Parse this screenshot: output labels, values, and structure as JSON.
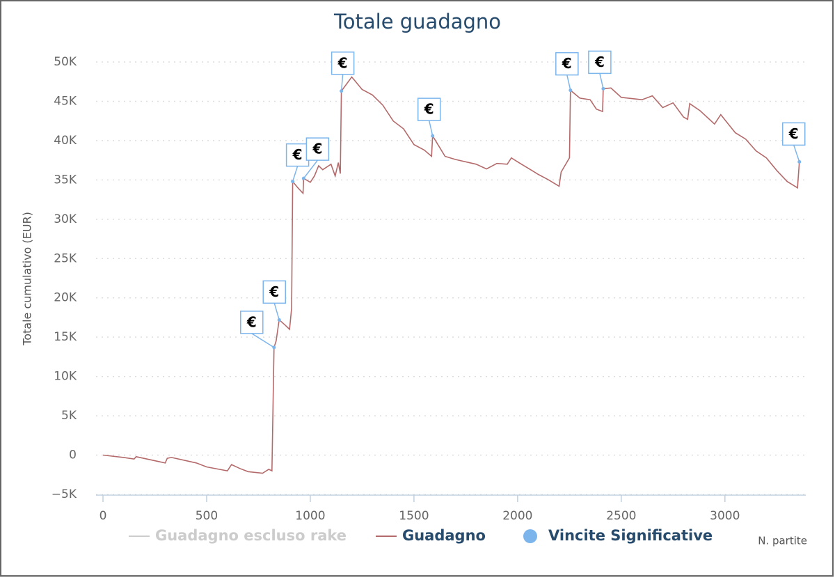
{
  "chart_data": {
    "type": "line",
    "title": "Totale guadagno",
    "x_label": "N. partite",
    "y_label": "Totale cumulativo (EUR)",
    "xlim": [
      0,
      3390
    ],
    "xticks": [
      0,
      500,
      1000,
      1500,
      2000,
      2500,
      3000
    ],
    "ylim": [
      -5000,
      50000
    ],
    "yticks": [
      {
        "value": -5000,
        "label": "−5K"
      },
      0,
      {
        "value": 5000,
        "label": "5K"
      },
      {
        "value": 10000,
        "label": "10K"
      },
      {
        "value": 15000,
        "label": "15K"
      },
      {
        "value": 20000,
        "label": "20K"
      },
      {
        "value": 25000,
        "label": "25K"
      },
      {
        "value": 30000,
        "label": "30K"
      },
      {
        "value": 35000,
        "label": "35K"
      },
      {
        "value": 40000,
        "label": "40K"
      },
      {
        "value": 45000,
        "label": "45K"
      },
      {
        "value": 50000,
        "label": "50K"
      }
    ],
    "grid": true,
    "series": [
      {
        "name": "Guadagno escluso rake",
        "color": "#cccccc",
        "hidden": true,
        "x": [],
        "values": []
      },
      {
        "name": "Guadagno",
        "color": "#b46a6a",
        "x": [
          0,
          100,
          150,
          160,
          300,
          310,
          330,
          450,
          500,
          600,
          620,
          660,
          700,
          770,
          800,
          815,
          825,
          835,
          850,
          880,
          900,
          910,
          915,
          940,
          965,
          968,
          1000,
          1020,
          1040,
          1060,
          1100,
          1120,
          1135,
          1145,
          1150,
          1200,
          1250,
          1300,
          1350,
          1400,
          1450,
          1500,
          1550,
          1585,
          1590,
          1650,
          1700,
          1800,
          1850,
          1900,
          1950,
          1970,
          2000,
          2050,
          2100,
          2150,
          2200,
          2210,
          2250,
          2255,
          2300,
          2350,
          2380,
          2410,
          2413,
          2450,
          2500,
          2600,
          2650,
          2700,
          2750,
          2800,
          2820,
          2830,
          2880,
          2950,
          2980,
          3050,
          3100,
          3150,
          3200,
          3250,
          3300,
          3350,
          3359
        ],
        "values": [
          0,
          -300,
          -500,
          -200,
          -1000,
          -400,
          -300,
          -1000,
          -1500,
          -2000,
          -1200,
          -1700,
          -2100,
          -2300,
          -1800,
          -2000,
          13700,
          14500,
          17200,
          16500,
          16000,
          18700,
          34800,
          34000,
          33300,
          35200,
          34700,
          35500,
          36800,
          36300,
          37000,
          35500,
          37200,
          35800,
          46300,
          48100,
          46500,
          45800,
          44500,
          42500,
          41500,
          39500,
          38800,
          38000,
          40600,
          38000,
          37600,
          37000,
          36400,
          37100,
          37000,
          37800,
          37300,
          36500,
          35700,
          35000,
          34200,
          36000,
          37800,
          46400,
          45400,
          45200,
          44000,
          43700,
          46600,
          46700,
          45500,
          45200,
          45700,
          44200,
          44800,
          43000,
          42700,
          44700,
          43800,
          42100,
          43300,
          41000,
          40200,
          38700,
          37800,
          36200,
          34800,
          34000,
          37300
        ]
      },
      {
        "name": "Vincite Significative",
        "type": "scatter",
        "color": "#7cb5ec",
        "flag_label": "€",
        "x": [
          825,
          850,
          915,
          968,
          1150,
          1590,
          2255,
          2413,
          3359
        ],
        "values": [
          13700,
          17200,
          34800,
          35200,
          46300,
          40600,
          46400,
          46600,
          37300
        ]
      }
    ]
  }
}
